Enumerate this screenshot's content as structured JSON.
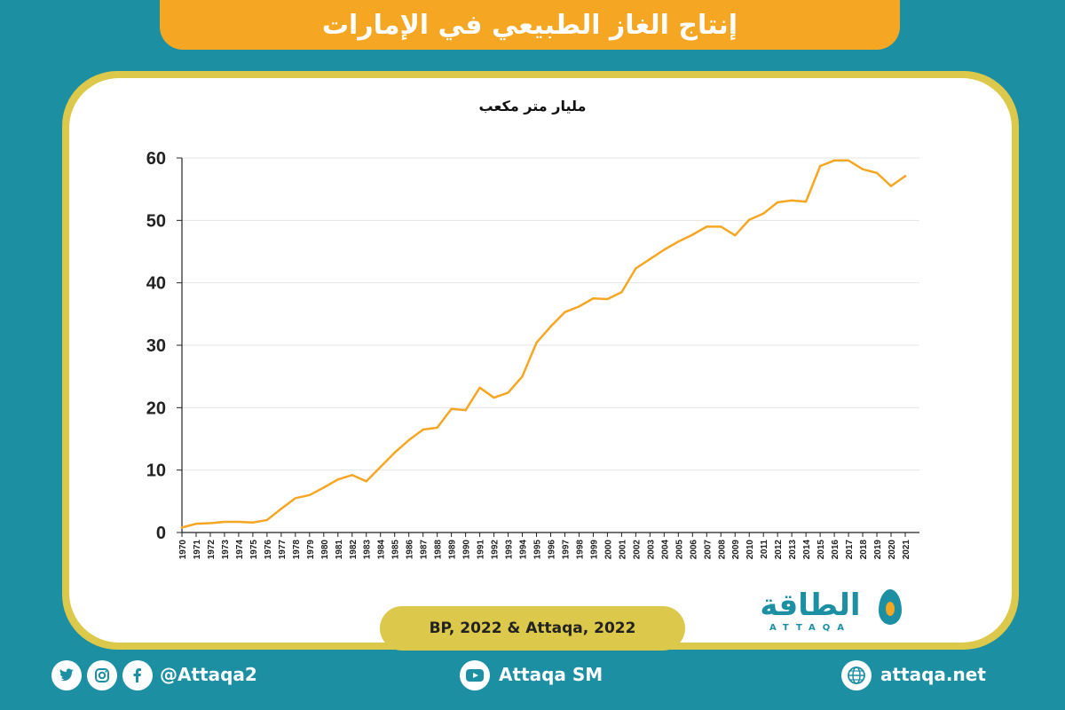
{
  "header": {
    "title": "إنتاج الغاز الطبيعي في الإمارات"
  },
  "chart_data": {
    "type": "line",
    "title": "إنتاج الغاز الطبيعي في الإمارات",
    "ylabel": "مليار متر مكعب",
    "xlabel": "",
    "ylim": [
      0,
      60
    ],
    "yticks": [
      0,
      10,
      20,
      30,
      40,
      50,
      60
    ],
    "grid": true,
    "x": [
      1970,
      1971,
      1972,
      1973,
      1974,
      1975,
      1976,
      1977,
      1978,
      1979,
      1980,
      1981,
      1982,
      1983,
      1984,
      1985,
      1986,
      1987,
      1988,
      1989,
      1990,
      1991,
      1992,
      1993,
      1994,
      1995,
      1996,
      1997,
      1998,
      1999,
      2000,
      2001,
      2002,
      2003,
      2004,
      2005,
      2006,
      2007,
      2008,
      2009,
      2010,
      2011,
      2012,
      2013,
      2014,
      2015,
      2016,
      2017,
      2018,
      2019,
      2020,
      2021
    ],
    "series": [
      {
        "values": [
          0.8,
          1.4,
          1.5,
          1.7,
          1.7,
          1.6,
          2.0,
          3.8,
          5.5,
          6.0,
          7.2,
          8.5,
          9.2,
          8.2,
          10.5,
          12.8,
          14.8,
          16.5,
          16.8,
          19.8,
          19.6,
          23.2,
          21.6,
          22.4,
          25.0,
          30.4,
          33.0,
          35.3,
          36.2,
          37.5,
          37.4,
          38.5,
          42.3,
          43.8,
          45.3,
          46.6,
          47.7,
          49.0,
          49.0,
          47.6,
          50.1,
          51.1,
          52.9,
          53.2,
          53.0,
          58.7,
          59.6,
          59.6,
          58.2,
          57.6,
          55.5,
          57.1
        ],
        "color": "#f5a623"
      }
    ]
  },
  "source": {
    "text": "BP, 2022 & Attaqa, 2022"
  },
  "logo": {
    "text": "الطاقة",
    "sub": "ATTAQA"
  },
  "footer": {
    "handle": "@Attaqa2",
    "youtube": "Attaqa SM",
    "website": "attaqa.net",
    "twitter_icon": "twitter-icon",
    "instagram_icon": "instagram-icon",
    "facebook_icon": "facebook-icon",
    "youtube_icon": "youtube-icon",
    "globe_icon": "globe-icon"
  },
  "colors": {
    "background": "#1c8fa3",
    "accent": "#f5a623",
    "frame": "#dcc84a"
  }
}
